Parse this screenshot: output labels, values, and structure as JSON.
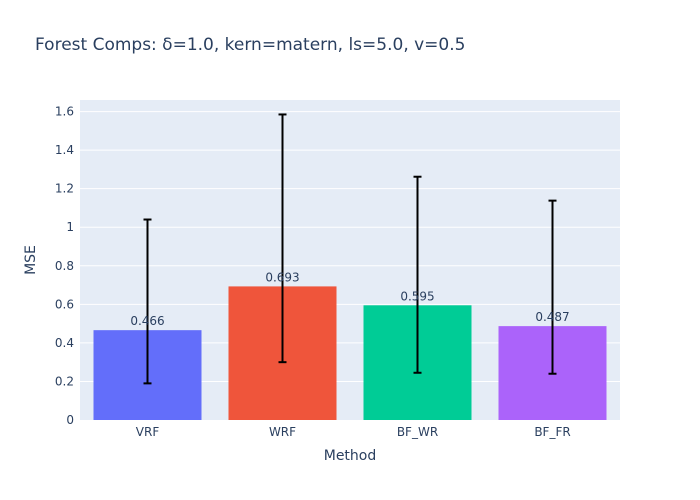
{
  "chart_data": {
    "type": "bar",
    "title": "Forest Comps: δ=1.0, kern=matern, ls=5.0, v=0.5",
    "xlabel": "Method",
    "ylabel": "MSE",
    "categories": [
      "VRF",
      "WRF",
      "BF_WR",
      "BF_FR"
    ],
    "values": [
      0.466,
      0.693,
      0.595,
      0.487
    ],
    "data_labels": [
      "0.466",
      "0.693",
      "0.595",
      "0.487"
    ],
    "error_low": [
      0.19,
      0.3,
      0.245,
      0.24
    ],
    "error_high": [
      1.04,
      1.585,
      1.262,
      1.138
    ],
    "colors": [
      "#636efa",
      "#ef553b",
      "#00cc96",
      "#ab63fa"
    ],
    "ylim": [
      0,
      1.66
    ],
    "yticks": [
      0,
      0.2,
      0.4,
      0.6,
      0.8,
      1,
      1.2,
      1.4,
      1.6
    ],
    "ytick_labels": [
      "0",
      "0.2",
      "0.4",
      "0.6",
      "0.8",
      "1",
      "1.2",
      "1.4",
      "1.6"
    ],
    "grid": true,
    "legend": "none",
    "plot_bg": "#e5ecf6",
    "error_color": "#000000"
  }
}
